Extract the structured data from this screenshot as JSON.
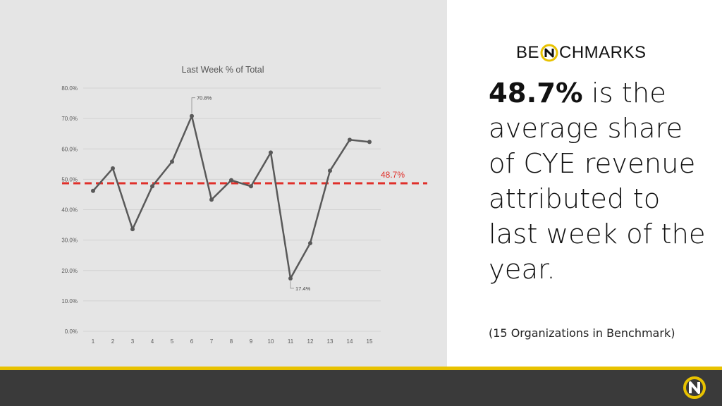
{
  "brand": {
    "pre": "BE",
    "post": "CHMARKS",
    "accent": "#e8c200"
  },
  "headline": {
    "bold": "48.7%",
    "rest": " is the average share of CYE revenue attributed to last week of the year."
  },
  "footnote": "(15 Organizations in Benchmark)",
  "colors": {
    "line": "#595959",
    "average": "#e0302a",
    "panel": "#e5e5e5",
    "footer": "#3a3a3a"
  },
  "chart_data": {
    "type": "line",
    "title": "Last Week % of Total",
    "xlabel": "",
    "ylabel": "",
    "x": [
      1,
      2,
      3,
      4,
      5,
      6,
      7,
      8,
      9,
      10,
      11,
      12,
      13,
      14,
      15
    ],
    "series": [
      {
        "values": [
          46.2,
          53.6,
          33.6,
          47.7,
          55.8,
          70.8,
          43.3,
          49.7,
          47.7,
          58.8,
          17.4,
          29.0,
          52.8,
          63.0,
          62.3
        ]
      }
    ],
    "ylim": [
      0,
      80
    ],
    "yticks": [
      "0.0%",
      "10.0%",
      "20.0%",
      "30.0%",
      "40.0%",
      "50.0%",
      "60.0%",
      "70.0%",
      "80.0%"
    ],
    "xticks": [
      "1",
      "2",
      "3",
      "4",
      "5",
      "6",
      "7",
      "8",
      "9",
      "10",
      "11",
      "12",
      "13",
      "14",
      "15"
    ],
    "average": {
      "value": 48.7,
      "label": "48.7%"
    },
    "annotations": [
      {
        "x": 6,
        "label": "70.8%"
      },
      {
        "x": 11,
        "label": "17.4%"
      }
    ],
    "grid": true
  }
}
